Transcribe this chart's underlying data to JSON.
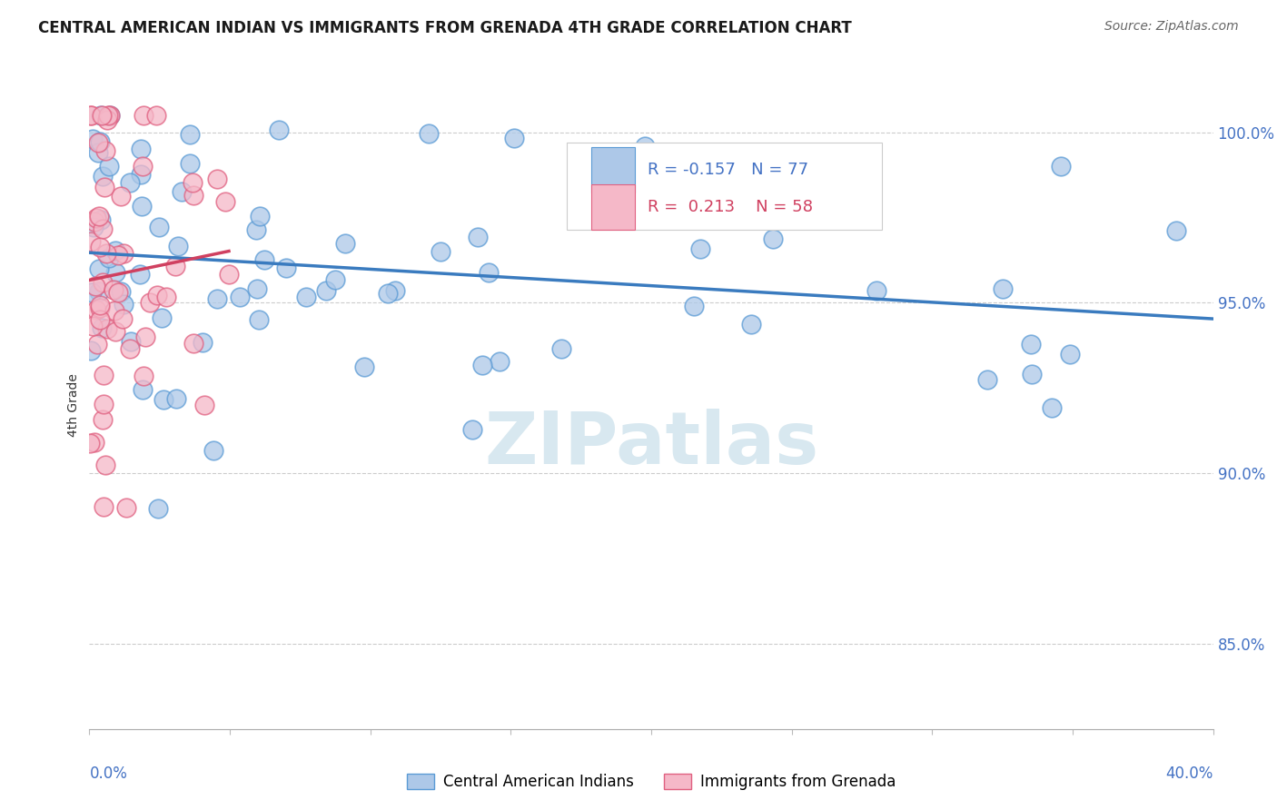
{
  "title": "CENTRAL AMERICAN INDIAN VS IMMIGRANTS FROM GRENADA 4TH GRADE CORRELATION CHART",
  "source": "Source: ZipAtlas.com",
  "ylabel": "4th Grade",
  "xlim": [
    0.0,
    40.0
  ],
  "ylim": [
    82.5,
    101.5
  ],
  "yticks": [
    85.0,
    90.0,
    95.0,
    100.0
  ],
  "ytick_labels": [
    "85.0%",
    "90.0%",
    "95.0%",
    "100.0%"
  ],
  "legend_r_blue": "-0.157",
  "legend_n_blue": "77",
  "legend_r_pink": "0.213",
  "legend_n_pink": "58",
  "color_blue_face": "#adc8e8",
  "color_blue_edge": "#5b9bd5",
  "color_pink_face": "#f5b8c8",
  "color_pink_edge": "#e06080",
  "color_trendline_blue": "#3a7bbf",
  "color_trendline_pink": "#d04060",
  "color_axis_labels": "#4472c4",
  "color_grid": "#cccccc",
  "watermark_text": "ZIPatlas",
  "watermark_color": "#d8e8f0",
  "seed_blue": 42,
  "seed_pink": 7,
  "n_blue": 77,
  "n_pink": 58
}
